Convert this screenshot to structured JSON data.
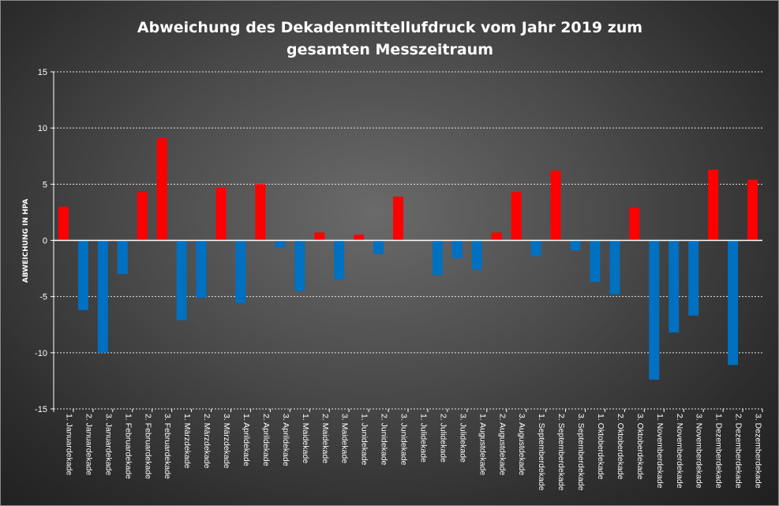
{
  "chart_data": {
    "type": "bar",
    "title": "Abweichung des Dekadenmittellufdruck vom Jahr 2019 zum gesamten Messzeitraum",
    "title_lines": [
      "Abweichung des Dekadenmittellufdruck vom Jahr 2019 zum",
      "gesamten Messzeitraum"
    ],
    "xlabel": "",
    "ylabel": "ABWEICHUNG IN HPA",
    "ylim": [
      -15,
      15
    ],
    "yticks": [
      15,
      10,
      5,
      0,
      -5,
      -10,
      -15
    ],
    "grid": true,
    "legend": "none",
    "colors": {
      "positive": "#ff0000",
      "negative": "#0070c0",
      "grid": "#e6e6e6",
      "axis": "#ffffff"
    },
    "categories": [
      "1. Januardekade",
      "2. Januardekade",
      "3. Januardekade",
      "1. Februardekade",
      "2. Februardekade",
      "3. Februardekade",
      "1. Märzdekade",
      "2. Märzdekade",
      "3. Märzdekade",
      "1. Aprildekade",
      "2. Aprildekade",
      "3. Aprildekade",
      "1. Maidekade",
      "2. Maidekade",
      "3. Maidekade",
      "1. Junidekade",
      "2. Junidekade",
      "3. Junidekade",
      "1. Julidekade",
      "2. Julidekade",
      "3. Julidekade",
      "1. Augustdekade",
      "2. Augustdekade",
      "3. Augustdekade",
      "1. Septemberdekade",
      "2. Septemberdekade",
      "3. Septemberdekade",
      "1. Oktoberdekade",
      "2. Oktoberdekade",
      "3. Oktoberdekade",
      "1. Novemberdekade",
      "2. Novemberdekade",
      "3. Novemberdekade",
      "1. Dezemberdekade",
      "2. Dezemberdekade",
      "3. Dezemberdekade"
    ],
    "values": [
      3.0,
      -6.2,
      -10.0,
      -3.0,
      4.3,
      9.1,
      -7.1,
      -5.1,
      4.7,
      -5.6,
      5.0,
      -0.6,
      -4.5,
      0.7,
      -3.5,
      0.5,
      -1.2,
      3.9,
      0.0,
      -3.1,
      -1.6,
      -2.6,
      0.7,
      4.3,
      -1.4,
      6.2,
      -0.9,
      -3.7,
      -4.8,
      2.9,
      -12.4,
      -8.2,
      -6.7,
      6.3,
      -11.1,
      5.4
    ]
  }
}
